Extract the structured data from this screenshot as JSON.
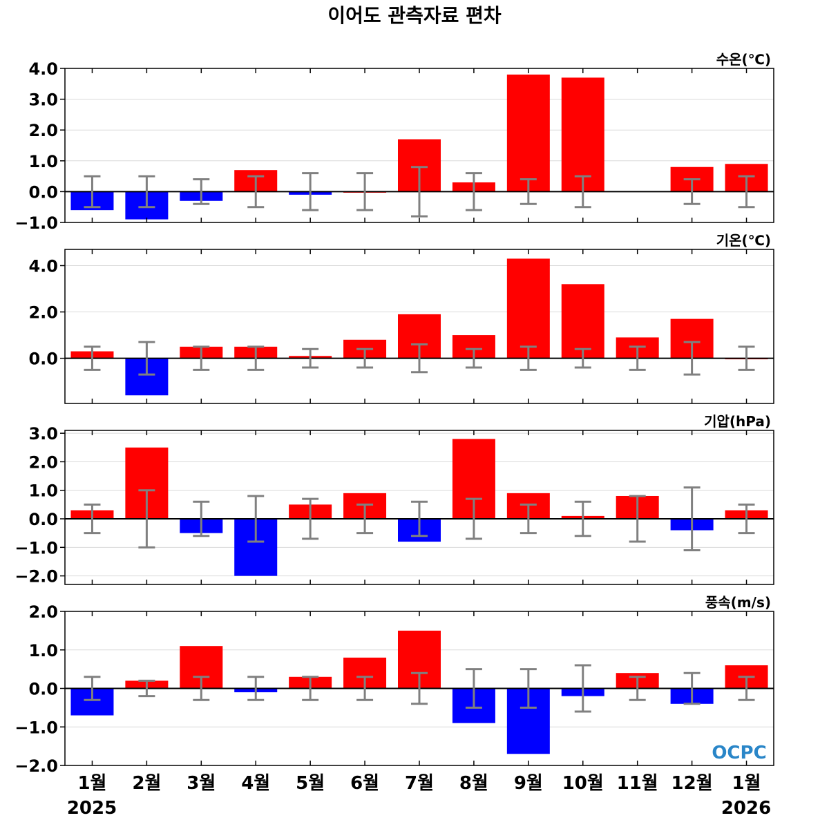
{
  "title": "이어도 관측자료 편차",
  "logo": "OCPC",
  "colors": {
    "positive": "#ff0000",
    "negative": "#0000ff",
    "errorbar": "#808080",
    "grid": "#d9d9d9"
  },
  "chart_data": [
    {
      "type": "bar",
      "unit_label": "수온(℃)",
      "categories": [
        "1월",
        "2월",
        "3월",
        "4월",
        "5월",
        "6월",
        "7월",
        "8월",
        "9월",
        "10월",
        "11월",
        "12월",
        "1월"
      ],
      "values": [
        -0.6,
        -0.9,
        -0.3,
        0.7,
        -0.1,
        0.0,
        1.7,
        0.3,
        3.8,
        3.7,
        null,
        0.8,
        0.9
      ],
      "errors": [
        0.5,
        0.5,
        0.4,
        0.5,
        0.6,
        0.6,
        0.8,
        0.6,
        0.4,
        0.5,
        null,
        0.4,
        0.5
      ],
      "ylim": [
        -1.0,
        4.0
      ],
      "yticks": [
        "−1.0",
        "0.0",
        "1.0",
        "2.0",
        "3.0",
        "4.0"
      ],
      "ytick_values": [
        -1,
        0,
        1,
        2,
        3,
        4
      ],
      "grid": true
    },
    {
      "type": "bar",
      "unit_label": "기온(℃)",
      "categories": [
        "1월",
        "2월",
        "3월",
        "4월",
        "5월",
        "6월",
        "7월",
        "8월",
        "9월",
        "10월",
        "11월",
        "12월",
        "1월"
      ],
      "values": [
        0.3,
        -1.6,
        0.5,
        0.5,
        0.1,
        0.8,
        1.9,
        1.0,
        4.3,
        3.2,
        0.9,
        1.7,
        0.0
      ],
      "errors": [
        0.5,
        0.7,
        0.5,
        0.5,
        0.4,
        0.4,
        0.6,
        0.4,
        0.5,
        0.4,
        0.5,
        0.7,
        0.5
      ],
      "ylim": [
        -1.95,
        4.7
      ],
      "yticks": [
        "0.0",
        "2.0",
        "4.0"
      ],
      "ytick_values": [
        0,
        2,
        4
      ],
      "grid": true
    },
    {
      "type": "bar",
      "unit_label": "기압(hPa)",
      "categories": [
        "1월",
        "2월",
        "3월",
        "4월",
        "5월",
        "6월",
        "7월",
        "8월",
        "9월",
        "10월",
        "11월",
        "12월",
        "1월"
      ],
      "values": [
        0.3,
        2.5,
        -0.5,
        -2.0,
        0.5,
        0.9,
        -0.8,
        2.8,
        0.9,
        0.1,
        0.8,
        -0.4,
        0.3
      ],
      "errors": [
        0.5,
        1.0,
        0.6,
        0.8,
        0.7,
        0.5,
        0.6,
        0.7,
        0.5,
        0.6,
        0.8,
        1.1,
        0.5
      ],
      "ylim": [
        -2.3,
        3.1
      ],
      "yticks": [
        "−2.0",
        "−1.0",
        "0.0",
        "1.0",
        "2.0",
        "3.0"
      ],
      "ytick_values": [
        -2,
        -1,
        0,
        1,
        2,
        3
      ],
      "grid": true
    },
    {
      "type": "bar",
      "unit_label": "풍속(m/s)",
      "categories": [
        "1월",
        "2월",
        "3월",
        "4월",
        "5월",
        "6월",
        "7월",
        "8월",
        "9월",
        "10월",
        "11월",
        "12월",
        "1월"
      ],
      "values": [
        -0.7,
        0.2,
        1.1,
        -0.1,
        0.3,
        0.8,
        1.5,
        -0.9,
        -1.7,
        -0.2,
        0.4,
        -0.4,
        0.6
      ],
      "errors": [
        0.3,
        0.2,
        0.3,
        0.3,
        0.3,
        0.3,
        0.4,
        0.5,
        0.5,
        0.6,
        0.3,
        0.4,
        0.3
      ],
      "ylim": [
        -2.0,
        2.0
      ],
      "yticks": [
        "−2.0",
        "−1.0",
        "0.0",
        "1.0",
        "2.0"
      ],
      "ytick_values": [
        -2,
        -1,
        0,
        1,
        2
      ],
      "grid": true
    }
  ],
  "x_axis": {
    "month_labels": [
      "1월",
      "2월",
      "3월",
      "4월",
      "5월",
      "6월",
      "7월",
      "8월",
      "9월",
      "10월",
      "11월",
      "12월",
      "1월"
    ],
    "year_start": "2025",
    "year_end": "2026"
  }
}
